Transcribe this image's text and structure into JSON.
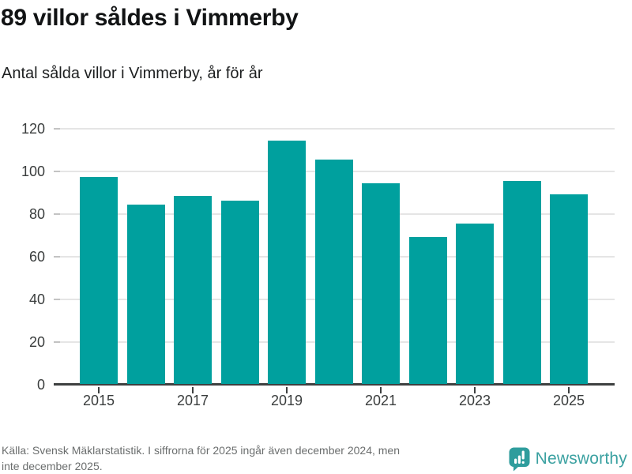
{
  "header": {
    "title": "89 villor såldes i Vimmerby",
    "subtitle": "Antal sålda villor i Vimmerby, år för år"
  },
  "chart_data": {
    "type": "bar",
    "title": "89 villor såldes i Vimmerby",
    "subtitle": "Antal sålda villor i Vimmerby, år för år",
    "categories": [
      "2015",
      "2016",
      "2017",
      "2018",
      "2019",
      "2020",
      "2021",
      "2022",
      "2023",
      "2024",
      "2025"
    ],
    "values": [
      97,
      84,
      88,
      86,
      114,
      105,
      94,
      69,
      75,
      95,
      89
    ],
    "xlabel": "",
    "ylabel": "",
    "ylim": [
      0,
      120
    ],
    "yticks": [
      0,
      20,
      40,
      60,
      80,
      100,
      120
    ],
    "xtick_labels": [
      "2015",
      "2017",
      "2019",
      "2021",
      "2023",
      "2025"
    ],
    "grid": "horizontal-only",
    "legend": "none",
    "bar_color": "#00a09e"
  },
  "footer": {
    "source_line1": "Källa: Svensk Mäklarstatistik. I siffrorna för 2025 ingår även december 2024, men",
    "source_line2": "inte december 2025.",
    "brand_name": "Newsworthy"
  },
  "colors": {
    "bar": "#00a09e",
    "title_text": "#111314",
    "axis_text": "#3a3d3d",
    "axis_line": "#3d4040",
    "gridline": "#e5e5e5",
    "footer_text": "#6b6e6e",
    "brand_teal": "#3ba1a1"
  }
}
